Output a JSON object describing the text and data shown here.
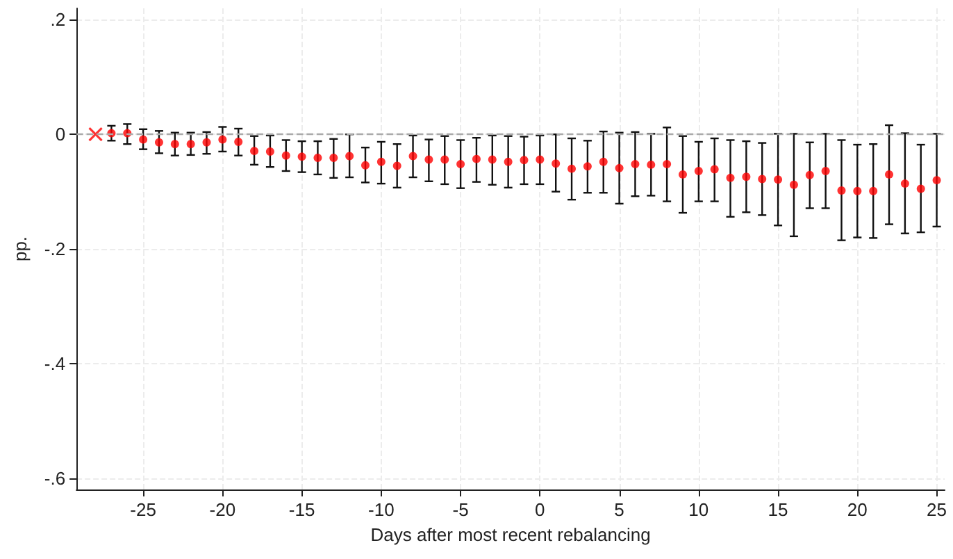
{
  "chart_data": {
    "type": "scatter",
    "xlabel": "Days after most recent rebalancing",
    "ylabel": "pp.",
    "xlim": [
      -29.2,
      25.5
    ],
    "xticks": [
      -25,
      -20,
      -15,
      -10,
      -5,
      0,
      5,
      10,
      15,
      20,
      25
    ],
    "ylim": [
      -0.62,
      0.22
    ],
    "yticks": [
      {
        "value": 0.2,
        "label": ".2"
      },
      0,
      {
        "value": -0.2,
        "label": "-.2"
      },
      {
        "value": -0.4,
        "label": "-.4"
      },
      {
        "value": -0.6,
        "label": "-.6"
      }
    ],
    "grid": true,
    "ref_lines": [
      {
        "axis": "y",
        "value": 0,
        "label": null,
        "color": "#aaaaaa",
        "line_style": "dashed"
      }
    ],
    "series": [
      {
        "color": "#ff0000",
        "marker": "cross",
        "x": [
          -28
        ],
        "values": [
          0
        ]
      },
      {
        "color": "#ff0000",
        "marker": "circle",
        "x": [
          -27,
          -26,
          -25,
          -24,
          -23,
          -22,
          -21,
          -20,
          -19,
          -18,
          -17,
          -16,
          -15,
          -14,
          -13,
          -12,
          -11,
          -10,
          -9,
          -8,
          -7,
          -6,
          -5,
          -4,
          -3,
          -2,
          -1,
          0,
          1,
          2,
          3,
          4,
          5,
          6,
          7,
          8,
          9,
          10,
          11,
          12,
          13,
          14,
          15,
          16,
          17,
          18,
          19,
          20,
          21,
          22,
          23,
          24,
          25
        ],
        "values": [
          0.002,
          0.002,
          -0.009,
          -0.014,
          -0.017,
          -0.017,
          -0.014,
          -0.009,
          -0.013,
          -0.029,
          -0.03,
          -0.037,
          -0.039,
          -0.041,
          -0.041,
          -0.038,
          -0.054,
          -0.048,
          -0.055,
          -0.038,
          -0.044,
          -0.044,
          -0.052,
          -0.043,
          -0.044,
          -0.048,
          -0.045,
          -0.044,
          -0.051,
          -0.06,
          -0.056,
          -0.048,
          -0.059,
          -0.052,
          -0.053,
          -0.052,
          -0.07,
          -0.064,
          -0.061,
          -0.076,
          -0.074,
          -0.078,
          -0.079,
          -0.088,
          -0.071,
          -0.064,
          -0.098,
          -0.099,
          -0.099,
          -0.07,
          -0.086,
          -0.095,
          -0.08
        ],
        "errors": [
          [
            -0.011,
            0.015
          ],
          [
            -0.017,
            0.018
          ],
          [
            -0.026,
            0.009
          ],
          [
            -0.033,
            0.006
          ],
          [
            -0.037,
            0.003
          ],
          [
            -0.036,
            0.003
          ],
          [
            -0.034,
            0.004
          ],
          [
            -0.03,
            0.013
          ],
          [
            -0.037,
            0.01
          ],
          [
            -0.053,
            -0.003
          ],
          [
            -0.057,
            -0.002
          ],
          [
            -0.064,
            -0.01
          ],
          [
            -0.066,
            -0.012
          ],
          [
            -0.07,
            -0.012
          ],
          [
            -0.076,
            -0.008
          ],
          [
            -0.075,
            0.0
          ],
          [
            -0.084,
            -0.023
          ],
          [
            -0.086,
            -0.013
          ],
          [
            -0.093,
            -0.017
          ],
          [
            -0.075,
            -0.002
          ],
          [
            -0.082,
            -0.009
          ],
          [
            -0.087,
            -0.003
          ],
          [
            -0.094,
            -0.01
          ],
          [
            -0.083,
            -0.006
          ],
          [
            -0.088,
            -0.002
          ],
          [
            -0.093,
            -0.003
          ],
          [
            -0.087,
            -0.004
          ],
          [
            -0.087,
            -0.002
          ],
          [
            -0.1,
            0.0
          ],
          [
            -0.114,
            -0.007
          ],
          [
            -0.102,
            -0.011
          ],
          [
            -0.102,
            0.005
          ],
          [
            -0.121,
            0.003
          ],
          [
            -0.108,
            0.004
          ],
          [
            -0.107,
            0.001
          ],
          [
            -0.117,
            0.012
          ],
          [
            -0.137,
            -0.003
          ],
          [
            -0.117,
            -0.013
          ],
          [
            -0.117,
            -0.007
          ],
          [
            -0.144,
            -0.01
          ],
          [
            -0.136,
            -0.012
          ],
          [
            -0.141,
            -0.015
          ],
          [
            -0.159,
            0.001
          ],
          [
            -0.178,
            0.001
          ],
          [
            -0.129,
            -0.014
          ],
          [
            -0.129,
            0.001
          ],
          [
            -0.185,
            -0.01
          ],
          [
            -0.18,
            -0.018
          ],
          [
            -0.181,
            -0.017
          ],
          [
            -0.157,
            0.016
          ],
          [
            -0.173,
            0.002
          ],
          [
            -0.171,
            -0.018
          ],
          [
            -0.161,
            0.001
          ]
        ]
      }
    ]
  }
}
